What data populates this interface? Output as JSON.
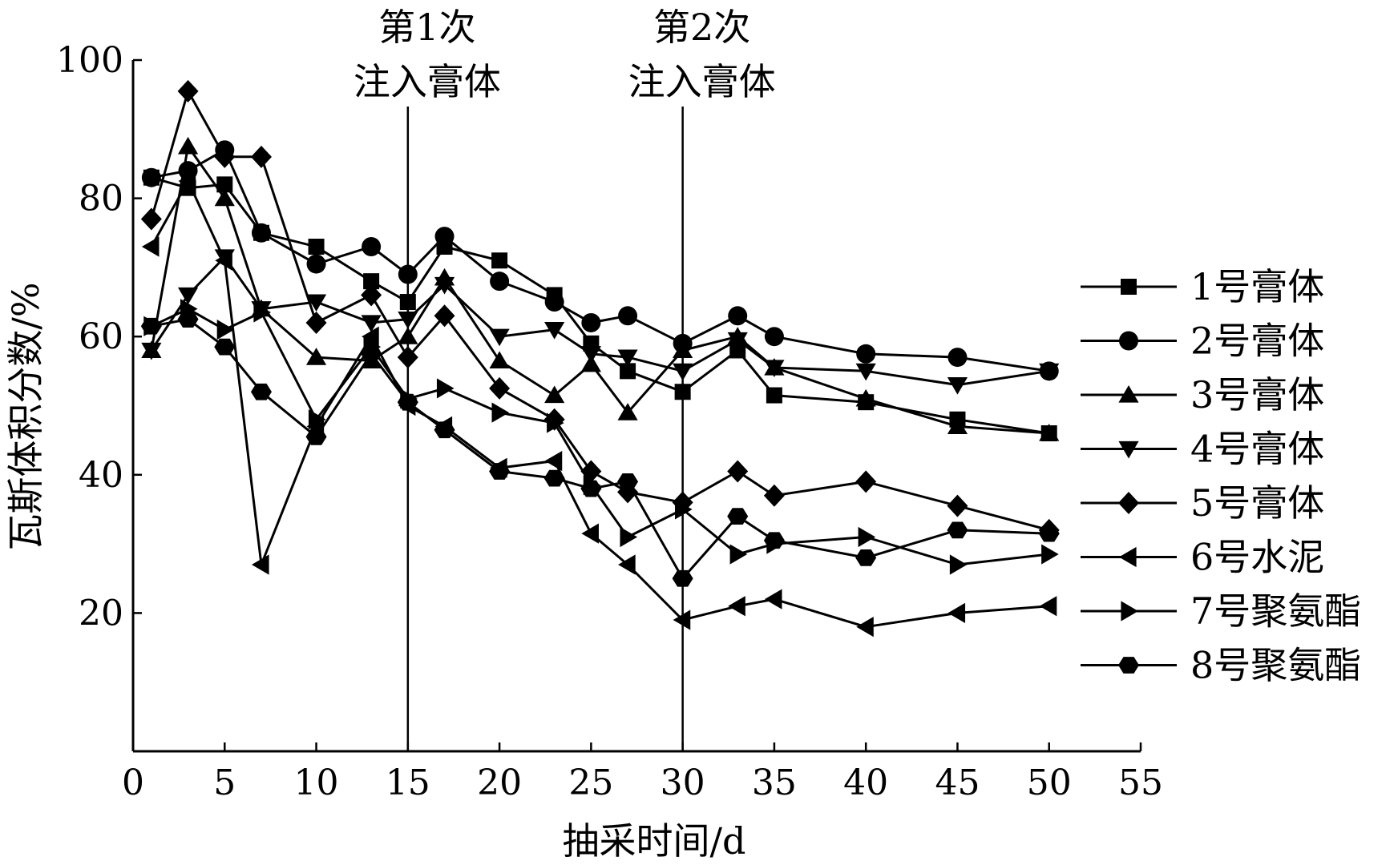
{
  "chart_data": {
    "type": "line",
    "title": "",
    "xlabel": "抽采时间/d",
    "ylabel": "瓦斯体积分数/%",
    "xlim": [
      0,
      55
    ],
    "ylim": [
      0,
      100
    ],
    "xticks": [
      0,
      5,
      10,
      15,
      20,
      25,
      30,
      35,
      40,
      45,
      50,
      55
    ],
    "yticks": [
      20,
      40,
      60,
      80,
      100
    ],
    "grid": false,
    "legend_position": "right",
    "annotations": [
      {
        "x": 15,
        "label_line1": "第1次",
        "label_line2": "注入膏体"
      },
      {
        "x": 30,
        "label_line1": "第2次",
        "label_line2": "注入膏体"
      }
    ],
    "series": [
      {
        "name": "1号膏体",
        "marker": "square",
        "x": [
          1,
          3,
          5,
          7,
          10,
          13,
          15,
          17,
          20,
          23,
          25,
          27,
          30,
          33,
          35,
          40,
          45,
          50
        ],
        "y": [
          83,
          81.5,
          82,
          75,
          73,
          68,
          65,
          73,
          71,
          66,
          59,
          55,
          52,
          58,
          51.5,
          50.5,
          48,
          46
        ]
      },
      {
        "name": "2号膏体",
        "marker": "circle",
        "x": [
          1,
          3,
          5,
          7,
          10,
          13,
          15,
          17,
          20,
          23,
          25,
          27,
          30,
          33,
          35,
          40,
          45,
          50
        ],
        "y": [
          83,
          84,
          87,
          75,
          70.5,
          73,
          69,
          74.5,
          68,
          65,
          62,
          63,
          59,
          63,
          60,
          57.5,
          57,
          55
        ]
      },
      {
        "name": "3号膏体",
        "marker": "triangle-up",
        "x": [
          1,
          3,
          5,
          7,
          10,
          13,
          15,
          17,
          20,
          23,
          25,
          27,
          30,
          33,
          35,
          40,
          45,
          50
        ],
        "y": [
          58,
          87.5,
          80,
          64,
          57,
          56.5,
          60,
          68.5,
          56.5,
          51.5,
          56,
          49,
          58,
          60,
          55.5,
          51,
          47,
          46
        ]
      },
      {
        "name": "4号膏体",
        "marker": "triangle-down",
        "x": [
          1,
          3,
          5,
          7,
          10,
          13,
          15,
          17,
          20,
          23,
          25,
          27,
          30,
          33,
          35,
          40,
          45,
          50
        ],
        "y": [
          58,
          66,
          71.5,
          64,
          65,
          62,
          62.5,
          67.5,
          60,
          61,
          57.5,
          57,
          55,
          59.5,
          55.5,
          55,
          53,
          55
        ]
      },
      {
        "name": "5号膏体",
        "marker": "diamond",
        "x": [
          1,
          3,
          5,
          7,
          10,
          13,
          15,
          17,
          20,
          23,
          25,
          27,
          30,
          33,
          35,
          40,
          45,
          50
        ],
        "y": [
          77,
          95.5,
          86,
          86,
          62,
          66,
          57,
          63,
          52.5,
          48,
          40.5,
          37.5,
          36,
          40.5,
          37,
          39,
          35.5,
          32
        ]
      },
      {
        "name": "6号水泥",
        "marker": "triangle-left",
        "x": [
          1,
          3,
          5,
          7,
          10,
          13,
          15,
          17,
          20,
          23,
          25,
          27,
          30,
          33,
          35,
          40,
          45,
          50
        ],
        "y": [
          73,
          82.5,
          71,
          27,
          47,
          60,
          50,
          47,
          41,
          42,
          31.5,
          27,
          19,
          21,
          22,
          18,
          20,
          21
        ]
      },
      {
        "name": "7号聚氨酯",
        "marker": "triangle-right",
        "x": [
          1,
          3,
          5,
          7,
          10,
          13,
          15,
          17,
          20,
          23,
          25,
          27,
          30,
          33,
          35,
          40,
          45,
          50
        ],
        "y": [
          61.5,
          64,
          61,
          63.5,
          48,
          58.5,
          51,
          52.5,
          49,
          47.5,
          38.5,
          31,
          35,
          28.5,
          30,
          31,
          27,
          28.5
        ]
      },
      {
        "name": "8号聚氨酯",
        "marker": "hexagon",
        "x": [
          1,
          3,
          5,
          7,
          10,
          13,
          15,
          17,
          20,
          23,
          25,
          27,
          30,
          33,
          35,
          40,
          45,
          50
        ],
        "y": [
          61.5,
          62.5,
          58.5,
          52,
          45.5,
          57.5,
          50.5,
          46.5,
          40.5,
          39.5,
          38,
          39,
          25,
          34,
          30.5,
          28,
          32,
          31.5
        ]
      }
    ]
  }
}
